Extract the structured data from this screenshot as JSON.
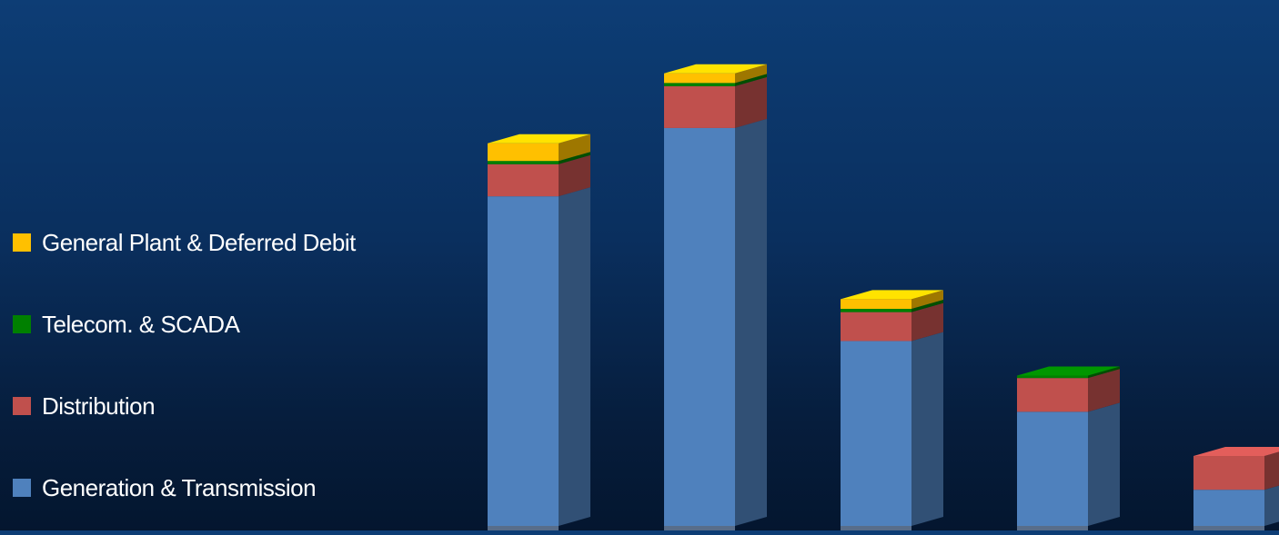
{
  "chart_data": {
    "type": "bar",
    "stacked": true,
    "three_d": true,
    "categories": [
      "",
      "",
      "",
      "",
      ""
    ],
    "series": [
      {
        "name": "Generation & Transmission",
        "color": "#4f81bd",
        "values": [
          410,
          495,
          230,
          142,
          45
        ]
      },
      {
        "name": "Distribution",
        "color": "#c0504d",
        "values": [
          40,
          52,
          36,
          42,
          42
        ]
      },
      {
        "name": "Telecom. & SCADA",
        "color": "#008000",
        "values": [
          4,
          4,
          4,
          3,
          0
        ]
      },
      {
        "name": "General Plant & Deferred Debit",
        "color": "#ffc000",
        "values": [
          22,
          12,
          12,
          0,
          0
        ]
      }
    ],
    "ylim": [
      0,
      560
    ],
    "grid": false,
    "legend_position": "left"
  }
}
